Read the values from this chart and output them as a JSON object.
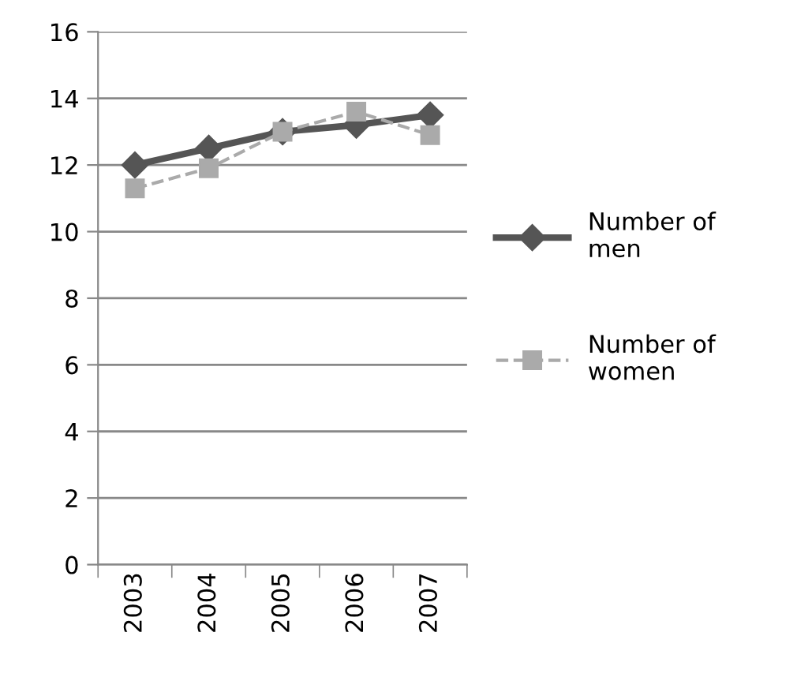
{
  "chart_data": {
    "type": "line",
    "categories": [
      "2003",
      "2004",
      "2005",
      "2006",
      "2007"
    ],
    "series": [
      {
        "name": "Number of men",
        "color": "#555555",
        "values": [
          12.0,
          12.5,
          13.0,
          13.2,
          13.5
        ],
        "marker": "diamond",
        "line_style": "solid"
      },
      {
        "name": "Number of women",
        "color": "#aaaaaa",
        "values": [
          11.3,
          11.9,
          13.0,
          13.6,
          12.9
        ],
        "marker": "square",
        "line_style": "dashed"
      }
    ],
    "ylim": [
      0,
      16
    ],
    "yticks": [
      0,
      2,
      4,
      6,
      8,
      10,
      12,
      14,
      16
    ],
    "grid": "y",
    "legend": "right"
  }
}
